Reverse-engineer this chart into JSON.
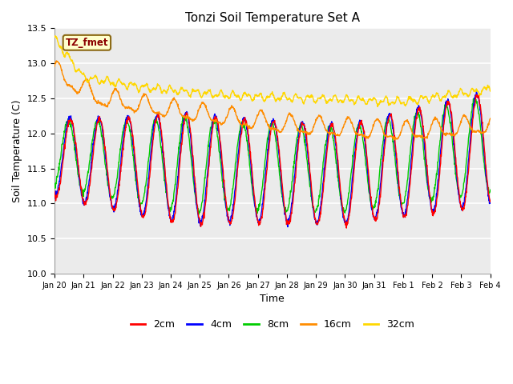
{
  "title": "Tonzi Soil Temperature Set A",
  "xlabel": "Time",
  "ylabel": "Soil Temperature (C)",
  "ylim": [
    10.0,
    13.5
  ],
  "yticks": [
    10.0,
    10.5,
    11.0,
    11.5,
    12.0,
    12.5,
    13.0,
    13.5
  ],
  "annotation_text": "TZ_fmet",
  "annotation_color": "#8B0000",
  "annotation_bg": "#FFFFCC",
  "annotation_border": "#8B6914",
  "line_colors": {
    "2cm": "#FF0000",
    "4cm": "#0000FF",
    "8cm": "#00CC00",
    "16cm": "#FF8C00",
    "32cm": "#FFD700"
  },
  "plot_bg": "#EBEBEB",
  "xtick_labels": [
    "Jan 20",
    "Jan 21",
    "Jan 22",
    "Jan 23",
    "Jan 24",
    "Jan 25",
    "Jan 26",
    "Jan 27",
    "Jan 28",
    "Jan 29",
    "Jan 30",
    "Jan 31",
    "Feb 1",
    "Feb 2",
    "Feb 3",
    "Feb 4"
  ],
  "figsize": [
    6.4,
    4.8
  ],
  "dpi": 100
}
